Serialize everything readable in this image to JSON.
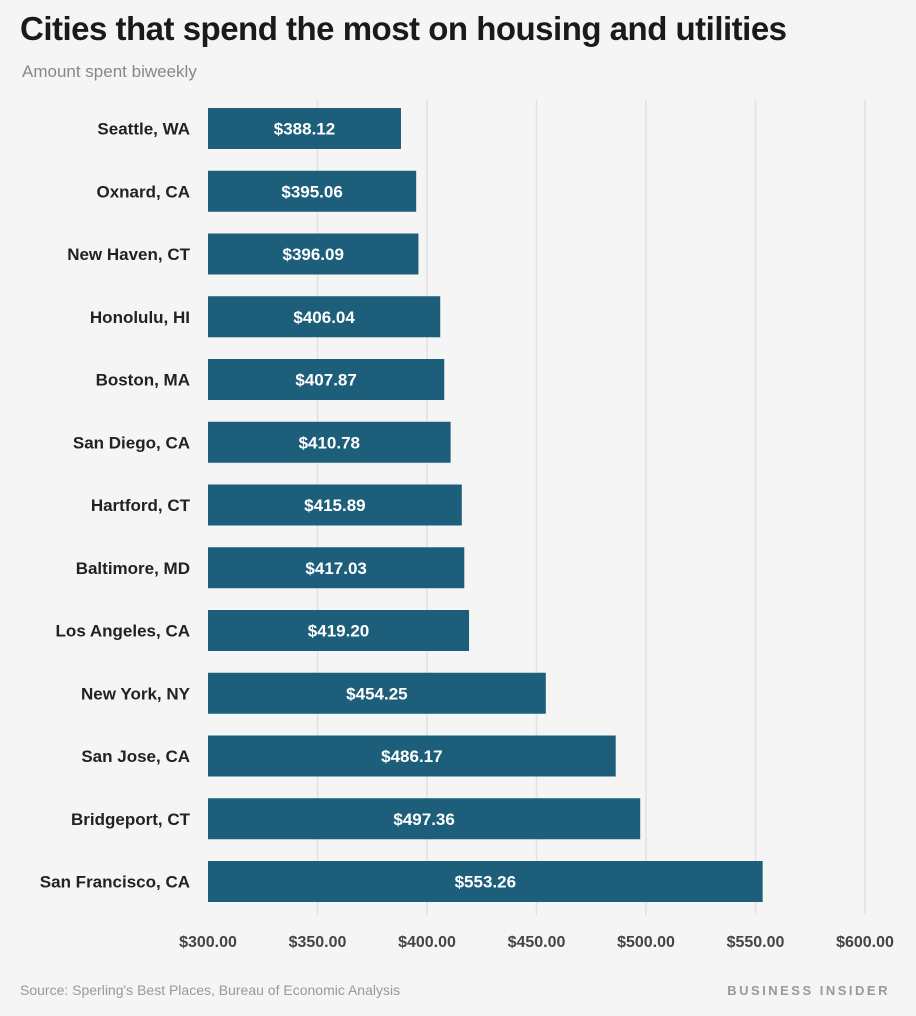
{
  "title": "Cities that spend the most on housing and utilities",
  "subtitle": "Amount spent biweekly",
  "source": "Source: Sperling's Best Places, Bureau of Economic Analysis",
  "brand": "BUSINESS INSIDER",
  "colors": {
    "bar": "#1d5e7b",
    "grid": "#e2e2e2",
    "background": "#f5f5f5"
  },
  "chart_data": {
    "type": "bar",
    "orientation": "horizontal",
    "categories": [
      "Seattle, WA",
      "Oxnard, CA",
      "New Haven, CT",
      "Honolulu, HI",
      "Boston, MA",
      "San Diego, CA",
      "Hartford, CT",
      "Baltimore, MD",
      "Los Angeles, CA",
      "New York, NY",
      "San Jose, CA",
      "Bridgeport, CT",
      "San Francisco, CA"
    ],
    "values": [
      388.12,
      395.06,
      396.09,
      406.04,
      407.87,
      410.78,
      415.89,
      417.03,
      419.2,
      454.25,
      486.17,
      497.36,
      553.26
    ],
    "value_labels": [
      "$388.12",
      "$395.06",
      "$396.09",
      "$406.04",
      "$407.87",
      "$410.78",
      "$415.89",
      "$417.03",
      "$419.20",
      "$454.25",
      "$486.17",
      "$497.36",
      "$553.26"
    ],
    "x_ticks": [
      300,
      350,
      400,
      450,
      500,
      550,
      600
    ],
    "x_tick_labels": [
      "$300.00",
      "$350.00",
      "$400.00",
      "$450.00",
      "$500.00",
      "$550.00",
      "$600.00"
    ],
    "xlim": [
      300,
      600
    ],
    "grid": true
  }
}
